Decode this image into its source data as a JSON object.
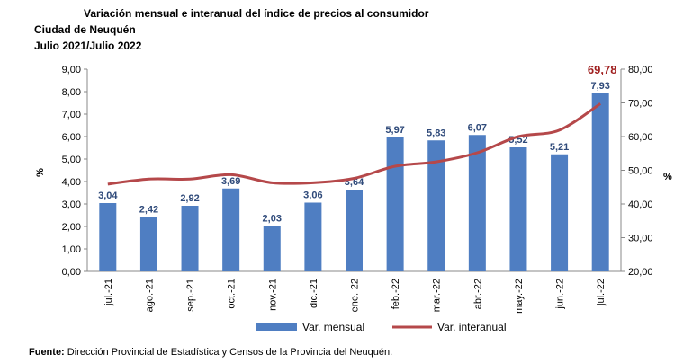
{
  "header": {
    "title": "Variación mensual e interanual del índice de precios al consumidor",
    "subtitle1": "Ciudad de Neuquén",
    "subtitle2": "Julio 2021/Julio 2022"
  },
  "chart_data": {
    "type": "bar+line",
    "categories": [
      "jul.-21",
      "ago.-21",
      "sep.-21",
      "oct.-21",
      "nov.-21",
      "dic.-21",
      "ene.-22",
      "feb.-22",
      "mar.-22",
      "abr.-22",
      "may.-22",
      "jun.-22",
      "jul.-22"
    ],
    "series": [
      {
        "name": "Var. mensual",
        "type": "bar",
        "axis": "left",
        "color": "#4F7EC2",
        "values": [
          3.04,
          2.42,
          2.92,
          3.69,
          2.03,
          3.06,
          3.64,
          5.97,
          5.83,
          6.07,
          5.52,
          5.21,
          7.93
        ],
        "labels": [
          "3,04",
          "2,42",
          "2,92",
          "3,69",
          "2,03",
          "3,06",
          "3,64",
          "5,97",
          "5,83",
          "6,07",
          "5,52",
          "5,21",
          "7,93"
        ]
      },
      {
        "name": "Var. interanual",
        "type": "line",
        "axis": "right",
        "color": "#B5484A",
        "values": [
          45.9,
          47.4,
          47.4,
          48.7,
          46.3,
          46.3,
          47.6,
          51.2,
          52.5,
          55.2,
          60.0,
          61.9,
          69.78
        ],
        "last_label": "69,78"
      }
    ],
    "ylabel_left": "%",
    "ylabel_right": "%",
    "ylim_left": [
      0,
      9
    ],
    "ylim_right": [
      20,
      80
    ],
    "yticks_left": [
      "0,00",
      "1,00",
      "2,00",
      "3,00",
      "4,00",
      "5,00",
      "6,00",
      "7,00",
      "8,00",
      "9,00"
    ],
    "yticks_right": [
      "20,00",
      "30,00",
      "40,00",
      "50,00",
      "60,00",
      "70,00",
      "80,00"
    ],
    "legend": "bottom"
  },
  "source": {
    "label": "Fuente:",
    "text": " Dirección Provincial de Estadística y Censos de la Provincia del Neuquén."
  }
}
